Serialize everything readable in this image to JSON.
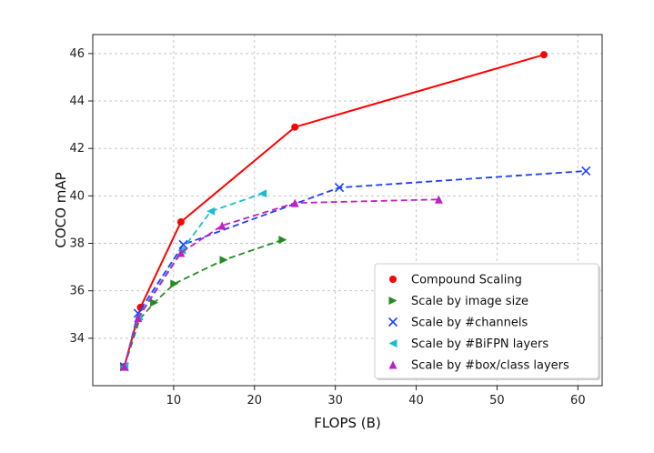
{
  "chart_data": {
    "type": "line",
    "xlabel": "FLOPS (B)",
    "ylabel": "COCO mAP",
    "xlim": [
      0,
      63
    ],
    "ylim": [
      32.0,
      46.8
    ],
    "xticks": [
      10,
      20,
      30,
      40,
      50,
      60
    ],
    "yticks": [
      34,
      36,
      38,
      40,
      42,
      44,
      46
    ],
    "grid": true,
    "legend_position": "bottom-right",
    "series": [
      {
        "name": "Compound Scaling",
        "color": "#ff0000",
        "linestyle": "solid",
        "marker": "circle",
        "x": [
          3.9,
          5.9,
          10.9,
          25.0,
          55.8
        ],
        "y": [
          32.8,
          35.3,
          38.9,
          42.9,
          45.95
        ]
      },
      {
        "name": "Scale by image size",
        "color": "#228b22",
        "linestyle": "dashed",
        "marker": "triangle-right",
        "x": [
          3.9,
          5.8,
          7.6,
          10.1,
          16.2,
          23.5
        ],
        "y": [
          32.8,
          34.8,
          35.5,
          36.3,
          37.3,
          38.15
        ]
      },
      {
        "name": "Scale by #channels",
        "color": "#1f3fff",
        "linestyle": "dashed",
        "marker": "x",
        "x": [
          3.9,
          5.6,
          11.2,
          30.5,
          61.0
        ],
        "y": [
          32.8,
          35.05,
          37.95,
          40.35,
          41.05
        ]
      },
      {
        "name": "Scale by #BiFPN layers",
        "color": "#17becf",
        "linestyle": "dashed",
        "marker": "triangle-left",
        "x": [
          3.9,
          5.6,
          11.0,
          14.6,
          21.0
        ],
        "y": [
          32.8,
          34.9,
          37.7,
          39.35,
          40.1
        ]
      },
      {
        "name": "Scale by #box/class layers",
        "color": "#c020c0",
        "linestyle": "dashed",
        "marker": "triangle-up",
        "x": [
          3.9,
          5.6,
          10.9,
          16.0,
          25.0,
          42.8
        ],
        "y": [
          32.8,
          34.85,
          37.6,
          38.75,
          39.7,
          39.85
        ]
      }
    ]
  }
}
